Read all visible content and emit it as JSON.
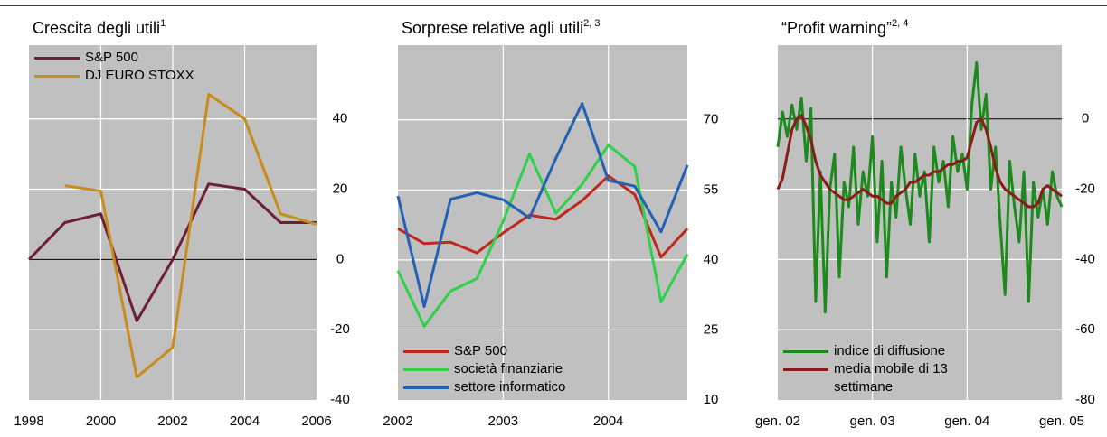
{
  "chart_data": [
    {
      "type": "line",
      "title": "Crescita degli utili",
      "title_sup": "1",
      "x": [
        1998,
        1999,
        2000,
        2001,
        2002,
        2003,
        2004,
        2005,
        2006
      ],
      "series": [
        {
          "name": "S&P 500",
          "color": "#6d1f33",
          "values": [
            0,
            10.5,
            13,
            -17.5,
            0,
            21.5,
            20,
            10.5,
            10.5
          ]
        },
        {
          "name": "DJ EURO STOXX",
          "color": "#c88b1c",
          "values": [
            null,
            21,
            19.5,
            -33.5,
            -25,
            47,
            40,
            13,
            10
          ]
        }
      ],
      "xlim": [
        1998,
        2006
      ],
      "xticks": [
        1998,
        2000,
        2002,
        2004,
        2006
      ],
      "ylim": [
        -40,
        61
      ],
      "yticks": [
        -40,
        -20,
        0,
        20,
        40
      ],
      "grid": true,
      "zero_line": true,
      "legend": "upper left",
      "background": "#c0c0c0"
    },
    {
      "type": "line",
      "title": "Sorprese relative agli utili",
      "title_sup": "2, 3",
      "x": [
        2002,
        2002.25,
        2002.5,
        2002.75,
        2003,
        2003.25,
        2003.5,
        2003.75,
        2004,
        2004.25,
        2004.5,
        2004.75
      ],
      "series": [
        {
          "name": "S&P 500",
          "color": "#c0281e",
          "values": [
            46.7,
            43.5,
            43.8,
            41.5,
            45.8,
            49.6,
            48.7,
            52.7,
            58,
            54,
            40.6,
            46.7
          ]
        },
        {
          "name": "società finanziarie",
          "color": "#2fd04a",
          "values": [
            37.7,
            25.8,
            33.3,
            36,
            48.3,
            62.7,
            50,
            56.2,
            64.6,
            60,
            31,
            41.2
          ]
        },
        {
          "name": "settore informatico",
          "color": "#2461b5",
          "values": [
            53.7,
            30,
            53,
            54.4,
            52.9,
            49,
            61.7,
            73.5,
            57,
            55.8,
            46,
            60.3
          ]
        }
      ],
      "xlim": [
        2002,
        2004.75
      ],
      "xticks": [
        2002,
        2003,
        2004
      ],
      "ylim": [
        10,
        86
      ],
      "yticks": [
        10,
        25,
        40,
        55,
        70
      ],
      "grid": true,
      "zero_line": false,
      "legend": "lower left",
      "background": "#c0c0c0"
    },
    {
      "type": "line",
      "title": "“Profit warning”",
      "title_sup": "2, 4",
      "x": [
        2002,
        2002.05,
        2002.1,
        2002.15,
        2002.2,
        2002.25,
        2002.3,
        2002.35,
        2002.4,
        2002.45,
        2002.5,
        2002.55,
        2002.6,
        2002.65,
        2002.7,
        2002.75,
        2002.8,
        2002.85,
        2002.9,
        2002.95,
        2003,
        2003.05,
        2003.1,
        2003.15,
        2003.2,
        2003.25,
        2003.3,
        2003.35,
        2003.4,
        2003.45,
        2003.5,
        2003.55,
        2003.6,
        2003.65,
        2003.7,
        2003.75,
        2003.8,
        2003.85,
        2003.9,
        2003.95,
        2004,
        2004.05,
        2004.1,
        2004.15,
        2004.2,
        2004.25,
        2004.3,
        2004.35,
        2004.4,
        2004.45,
        2004.5,
        2004.55,
        2004.6,
        2004.65,
        2004.7,
        2004.75,
        2004.8,
        2004.85,
        2004.9,
        2004.95,
        2005
      ],
      "series": [
        {
          "name": "indice di diffusione",
          "color": "#1e8a1e",
          "values": [
            -8,
            2,
            -5,
            4,
            -3,
            6,
            -12,
            3,
            -52,
            -15,
            -55,
            -20,
            -10,
            -45,
            -18,
            -25,
            -8,
            -30,
            -15,
            -22,
            -5,
            -35,
            -12,
            -45,
            -18,
            -28,
            -8,
            -20,
            -30,
            -10,
            -22,
            -15,
            -35,
            -8,
            -18,
            -12,
            -25,
            -5,
            -15,
            -10,
            -20,
            4,
            16,
            -3,
            7,
            -20,
            -8,
            -30,
            -50,
            -12,
            -25,
            -35,
            -15,
            -52,
            -18,
            -28,
            -20,
            -30,
            -15,
            -22,
            -25
          ]
        },
        {
          "name": "media mobile di 13 settimane",
          "color": "#8b1a1a",
          "values": [
            -20,
            -17,
            -10,
            -3,
            0,
            1,
            -2,
            -6,
            -12,
            -16,
            -18,
            -20,
            -21,
            -22,
            -23,
            -23,
            -22,
            -21,
            -20,
            -21,
            -22,
            -22,
            -23,
            -24,
            -24,
            -22,
            -21,
            -20,
            -18,
            -18,
            -17,
            -16,
            -16,
            -15,
            -15,
            -14,
            -13,
            -13,
            -12,
            -12,
            -11,
            -6,
            -1,
            0,
            -3,
            -8,
            -14,
            -18,
            -20,
            -21,
            -22,
            -23,
            -24,
            -25,
            -25,
            -24,
            -20,
            -19,
            -20,
            -21,
            -22
          ]
        }
      ],
      "xlim": [
        2002,
        2005
      ],
      "xticks": [
        {
          "value": 2002,
          "label": "gen. 02"
        },
        {
          "value": 2003,
          "label": "gen. 03"
        },
        {
          "value": 2004,
          "label": "gen. 04"
        },
        {
          "value": 2005,
          "label": "gen. 05"
        }
      ],
      "ylim": [
        -80,
        21
      ],
      "yticks": [
        -80,
        -60,
        -40,
        -20,
        0
      ],
      "grid": true,
      "zero_line": true,
      "legend": "lower left",
      "background": "#c0c0c0"
    }
  ]
}
